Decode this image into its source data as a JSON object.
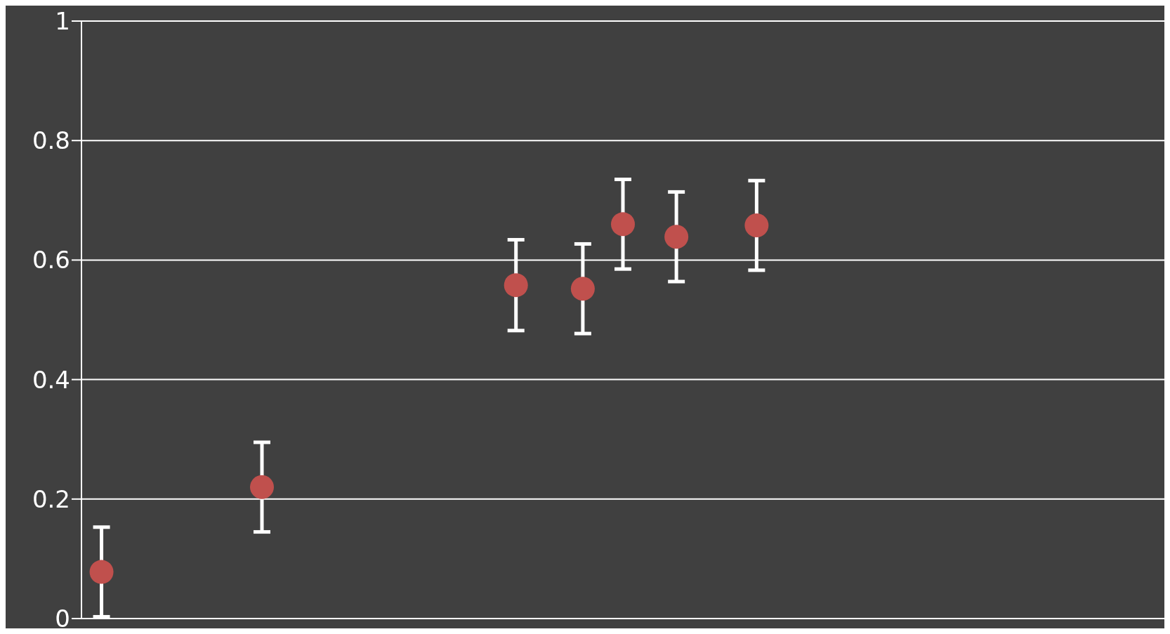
{
  "chart_data": {
    "type": "scatter",
    "categories": [
      null,
      null,
      null,
      null,
      null,
      null,
      null,
      null,
      null,
      null,
      null,
      null,
      null,
      null,
      null,
      null,
      null,
      null,
      null,
      null,
      null,
      null,
      null,
      null,
      null,
      null,
      null,
      null,
      null,
      null,
      null,
      null,
      null,
      null,
      null,
      null,
      null,
      null,
      null,
      null,
      null,
      null,
      null,
      null,
      null,
      null,
      null,
      null,
      null,
      null,
      null,
      null,
      null,
      null,
      null,
      null,
      null,
      null,
      null,
      null,
      null,
      null,
      null,
      null,
      null,
      null,
      null,
      null,
      null,
      null,
      null,
      null,
      null,
      null,
      null,
      null,
      null,
      null,
      null,
      null,
      null
    ],
    "series": [
      {
        "color": "#c0504d",
        "values": [
          null,
          0.078,
          null,
          null,
          null,
          null,
          null,
          null,
          null,
          null,
          null,
          null,
          null,
          0.22,
          null,
          null,
          null,
          null,
          null,
          null,
          null,
          null,
          null,
          null,
          null,
          null,
          null,
          null,
          null,
          null,
          null,
          null,
          0.558,
          null,
          null,
          null,
          null,
          0.552,
          null,
          null,
          0.66,
          null,
          null,
          null,
          0.639,
          null,
          null,
          null,
          null,
          null,
          0.658,
          null,
          null,
          null,
          null,
          null,
          null,
          null,
          null,
          null,
          null,
          null,
          null,
          null,
          null,
          null,
          null,
          null,
          null,
          null,
          null,
          null,
          null,
          null,
          null,
          null,
          null,
          null,
          null,
          null,
          null
        ],
        "errors": [
          null,
          0.075,
          null,
          null,
          null,
          null,
          null,
          null,
          null,
          null,
          null,
          null,
          null,
          0.075,
          null,
          null,
          null,
          null,
          null,
          null,
          null,
          null,
          null,
          null,
          null,
          null,
          null,
          null,
          null,
          null,
          null,
          null,
          0.076,
          null,
          null,
          null,
          null,
          0.075,
          null,
          null,
          0.075,
          null,
          null,
          null,
          0.075,
          null,
          null,
          null,
          null,
          null,
          0.075,
          null,
          null,
          null,
          null,
          null,
          null,
          null,
          null,
          null,
          null,
          null,
          null,
          null,
          null,
          null,
          null,
          null,
          null,
          null,
          null,
          null,
          null,
          null,
          null,
          null,
          null,
          null,
          null,
          null,
          null
        ]
      }
    ],
    "ylim": [
      0,
      1
    ],
    "yticks": [
      0,
      0.2,
      0.4,
      0.6,
      0.8,
      1
    ],
    "grid": "y",
    "marker": "circle",
    "legend": false
  }
}
